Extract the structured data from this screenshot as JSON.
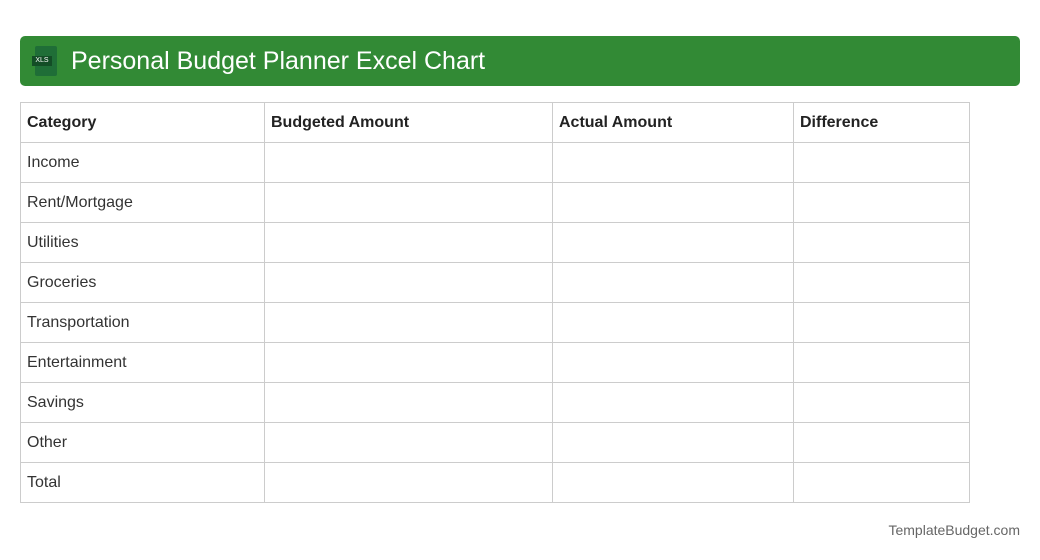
{
  "header": {
    "title": "Personal Budget Planner Excel Chart",
    "icon": "xls-file-icon",
    "icon_label": "XLS",
    "color": "#328a35"
  },
  "table": {
    "columns": [
      "Category",
      "Budgeted Amount",
      "Actual Amount",
      "Difference"
    ],
    "rows": [
      [
        "Income",
        "",
        "",
        ""
      ],
      [
        "Rent/Mortgage",
        "",
        "",
        ""
      ],
      [
        "Utilities",
        "",
        "",
        ""
      ],
      [
        "Groceries",
        "",
        "",
        ""
      ],
      [
        "Transportation",
        "",
        "",
        ""
      ],
      [
        "Entertainment",
        "",
        "",
        ""
      ],
      [
        "Savings",
        "",
        "",
        ""
      ],
      [
        "Other",
        "",
        "",
        ""
      ],
      [
        "Total",
        "",
        "",
        ""
      ]
    ]
  },
  "footer": {
    "brand": "TemplateBudget.com"
  }
}
